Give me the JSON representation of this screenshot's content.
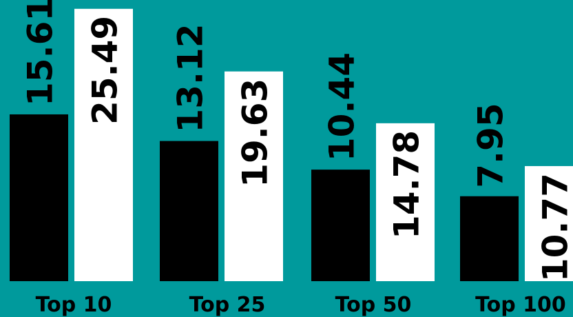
{
  "colors": {
    "background": "#009a9c",
    "series_a": "#000000",
    "series_b": "#ffffff"
  },
  "chart_data": {
    "type": "bar",
    "title": "",
    "xlabel": "",
    "ylabel": "",
    "categories": [
      "Top 10",
      "Top 25",
      "Top 50",
      "Top 100"
    ],
    "series": [
      {
        "values": [
          15.61,
          13.12,
          10.44,
          7.95
        ],
        "color": "#000000"
      },
      {
        "values": [
          25.49,
          19.63,
          14.78,
          10.77
        ],
        "color": "#ffffff"
      }
    ],
    "value_labels": {
      "series_a": [
        "15.61",
        "13.12",
        "10.44",
        "7.95"
      ],
      "series_b": [
        "25.49",
        "19.63",
        "14.78",
        "10.77"
      ]
    },
    "ylim": [
      0,
      25.8
    ],
    "grid": false,
    "legend": "none"
  }
}
